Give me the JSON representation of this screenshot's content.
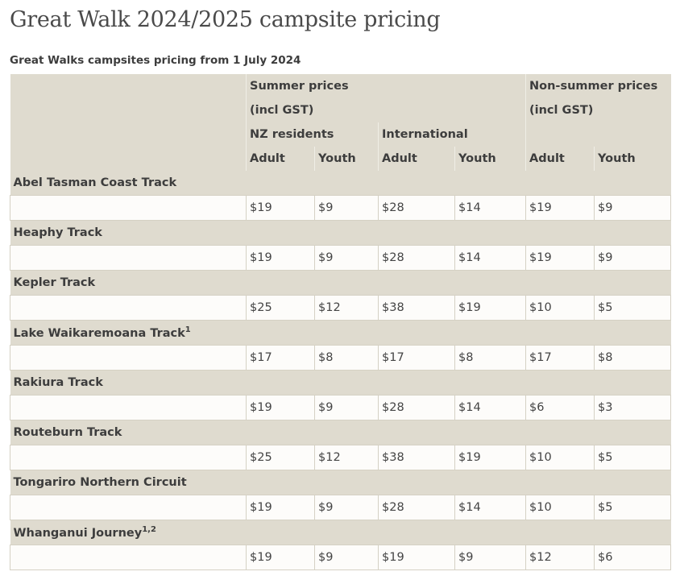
{
  "title": "Great Walk 2024/2025 campsite pricing",
  "caption": "Great Walks campsites pricing from 1 July 2024",
  "header": {
    "summer": "Summer prices",
    "summer_sub": "(incl GST)",
    "non_summer": "Non-summer prices",
    "non_summer_sub": "(incl GST)",
    "nz": "NZ residents",
    "international": "International",
    "adult": "Adult",
    "youth": "Youth"
  },
  "rows": [
    {
      "name": "Abel Tasman Coast Track",
      "sup": "",
      "prices": [
        "$19",
        "$9",
        "$28",
        "$14",
        "$19",
        "$9"
      ]
    },
    {
      "name": "Heaphy Track",
      "sup": "",
      "prices": [
        "$19",
        "$9",
        "$28",
        "$14",
        "$19",
        "$9"
      ]
    },
    {
      "name": "Kepler Track",
      "sup": "",
      "prices": [
        "$25",
        "$12",
        "$38",
        "$19",
        "$10",
        "$5"
      ]
    },
    {
      "name": "Lake Waikaremoana Track",
      "sup": "1",
      "prices": [
        "$17",
        "$8",
        "$17",
        "$8",
        "$17",
        "$8"
      ]
    },
    {
      "name": "Rakiura Track",
      "sup": "",
      "prices": [
        "$19",
        "$9",
        "$28",
        "$14",
        "$6",
        "$3"
      ]
    },
    {
      "name": "Routeburn Track",
      "sup": "",
      "prices": [
        "$25",
        "$12",
        "$38",
        "$19",
        "$10",
        "$5"
      ]
    },
    {
      "name": "Tongariro Northern Circuit",
      "sup": "",
      "prices": [
        "$19",
        "$9",
        "$28",
        "$14",
        "$10",
        "$5"
      ]
    },
    {
      "name": "Whanganui Journey",
      "sup": "1,2",
      "prices": [
        "$19",
        "$9",
        "$19",
        "$9",
        "$12",
        "$6"
      ]
    }
  ]
}
